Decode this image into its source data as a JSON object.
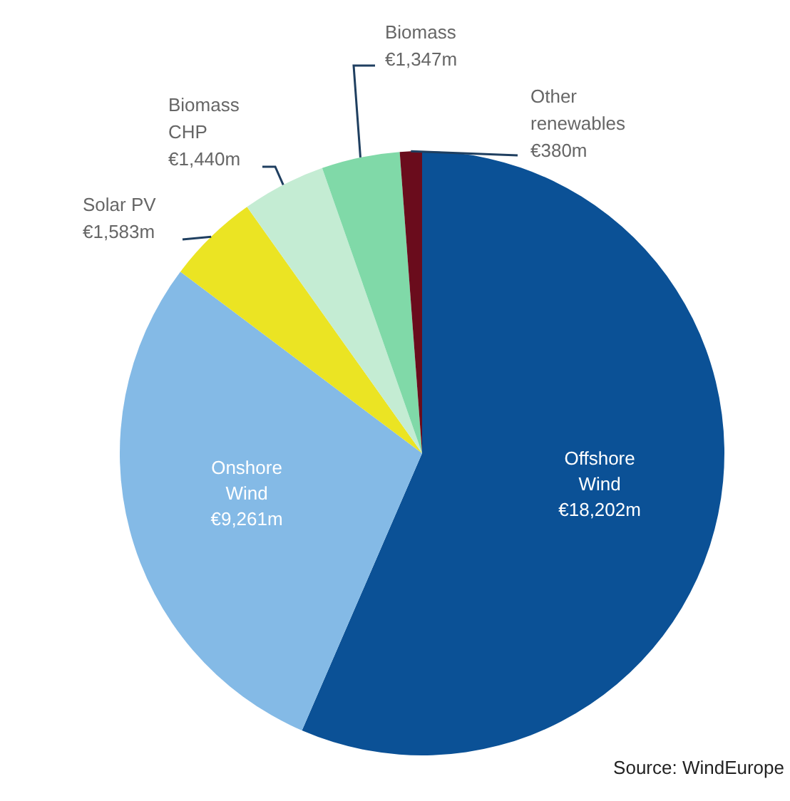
{
  "chart_data": {
    "type": "pie",
    "categories": [
      "Offshore Wind",
      "Onshore Wind",
      "Solar PV",
      "Biomass CHP",
      "Biomass",
      "Other renewables"
    ],
    "values": [
      18202,
      9261,
      1583,
      1440,
      1347,
      380
    ],
    "value_labels": [
      "€18,202m",
      "€9,261m",
      "€1,583m",
      "€1,440m",
      "€1,347m",
      "€380m"
    ],
    "colors": [
      "#0b5196",
      "#84bae6",
      "#ebe423",
      "#c4ecd3",
      "#80d9a8",
      "#6a0c1c"
    ],
    "annotations": [
      "Source: WindEurope"
    ]
  }
}
